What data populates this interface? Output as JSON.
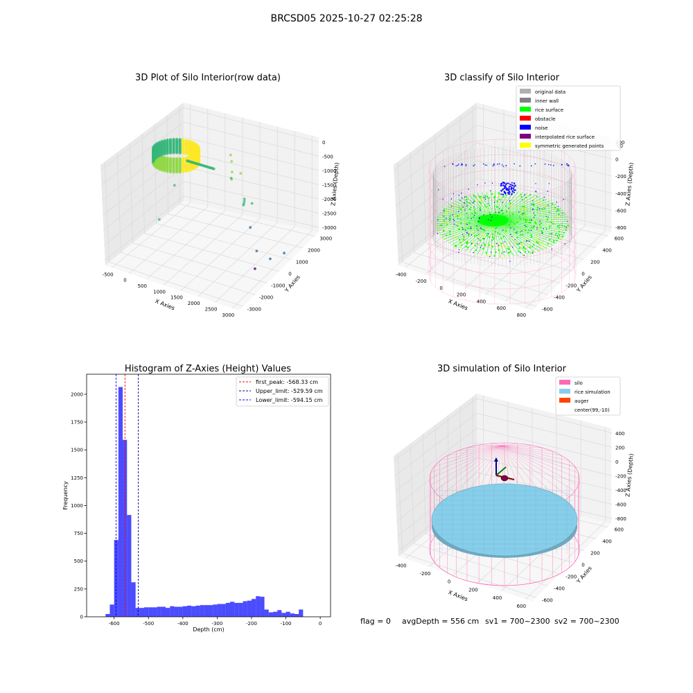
{
  "figure": {
    "suptitle": "BRCSD05 2025-10-27 02:25:28",
    "footer": {
      "flag": "flag = 0",
      "avg_depth": "avgDepth = 556 cm",
      "sv1": "sv1 = 700~2300",
      "sv2": "sv2 = 700~2300"
    }
  },
  "chart_data": [
    {
      "id": "raw3d",
      "type": "scatter",
      "title": "3D Plot of Silo Interior(row data)",
      "xlabel": "X Axies",
      "ylabel": "Y Axies",
      "zlabel": "Z Axies (Depth)",
      "x_ticks": [
        "-500",
        "0",
        "500",
        "1000",
        "1500",
        "2000",
        "2500",
        "3000"
      ],
      "y_ticks": [
        "-3000",
        "-2000",
        "-1000",
        "0",
        "1000",
        "2000",
        "3000"
      ],
      "z_ticks": [
        "0",
        "-500",
        "-1000",
        "-1500",
        "-2000",
        "-2500",
        "-3000"
      ],
      "xlim": [
        -600,
        3100
      ],
      "ylim": [
        -3100,
        3100
      ],
      "zlim": [
        -3100,
        100
      ],
      "colormap": [
        "#440154",
        "#31688e",
        "#35b779",
        "#90d743",
        "#fde725"
      ],
      "outlier_points": [
        {
          "x": 2900,
          "y": 800,
          "z": -2600
        },
        {
          "x": 2700,
          "y": 300,
          "z": -2700
        },
        {
          "x": 2400,
          "y": 100,
          "z": -2500
        },
        {
          "x": 2500,
          "y": -300,
          "z": -2900
        },
        {
          "x": 2000,
          "y": 700,
          "z": -2100
        },
        {
          "x": 1700,
          "y": 1000,
          "z": -1600
        },
        {
          "x": 1750,
          "y": 900,
          "z": -1500
        },
        {
          "x": 1780,
          "y": 850,
          "z": -1400
        },
        {
          "x": 1800,
          "y": 800,
          "z": -1300
        },
        {
          "x": 1900,
          "y": 1100,
          "z": -1500
        },
        {
          "x": 1300,
          "y": 1200,
          "z": -1000
        },
        {
          "x": 1200,
          "y": 1500,
          "z": -900
        },
        {
          "x": 1100,
          "y": 1700,
          "z": -1200
        },
        {
          "x": 1000,
          "y": 2000,
          "z": -800
        },
        {
          "x": 900,
          "y": 2200,
          "z": -700
        },
        {
          "x": 1400,
          "y": 1600,
          "z": -900
        },
        {
          "x": 200,
          "y": -100,
          "z": -1200
        },
        {
          "x": 300,
          "y": -1500,
          "z": -1800
        }
      ]
    },
    {
      "id": "classify3d",
      "type": "scatter",
      "title": "3D classify of Silo Interior",
      "xlabel": "X Axies",
      "ylabel": "Y Axies",
      "zlabel": "Z Axies (Depth)",
      "x_ticks": [
        "-400",
        "-200",
        "0",
        "200",
        "400",
        "600",
        "800"
      ],
      "y_ticks": [
        "-600",
        "-400",
        "-200",
        "0",
        "200",
        "400",
        "600"
      ],
      "z_ticks": [
        "200",
        "0",
        "-200",
        "-400",
        "-600",
        "-800"
      ],
      "z_tick_partial": "00",
      "legend": [
        {
          "label": "original data",
          "color": "#b0b0b0"
        },
        {
          "label": "inner wall",
          "color": "#808080"
        },
        {
          "label": "rice surface",
          "color": "#00ff00"
        },
        {
          "label": "obstacle",
          "color": "#ff0000"
        },
        {
          "label": "noise",
          "color": "#0000ff"
        },
        {
          "label": "interpolated rice surface",
          "color": "#800080"
        },
        {
          "label": "symmetric generated points",
          "color": "#ffff00"
        }
      ],
      "legend_loc": "upper right"
    },
    {
      "id": "histogram",
      "type": "bar",
      "title": "Histogram of Z-Axies (Height) Values",
      "xlabel": "Depth (cm)",
      "ylabel": "Frequency",
      "xlim": [
        -680,
        30
      ],
      "ylim": [
        0,
        2180
      ],
      "x_ticks": [
        -600,
        -500,
        -400,
        -300,
        -200,
        -100,
        0
      ],
      "y_ticks": [
        0,
        250,
        500,
        750,
        1000,
        1250,
        1500,
        1750,
        2000
      ],
      "bar_color": "#0000ff",
      "bin_width": 12.5,
      "bins": [
        {
          "x": -625,
          "value": 25
        },
        {
          "x": -612.5,
          "value": 110
        },
        {
          "x": -600,
          "value": 690
        },
        {
          "x": -587.5,
          "value": 2065
        },
        {
          "x": -575,
          "value": 1590
        },
        {
          "x": -562.5,
          "value": 915
        },
        {
          "x": -550,
          "value": 310
        },
        {
          "x": -537.5,
          "value": 80
        },
        {
          "x": -525,
          "value": 80
        },
        {
          "x": -512.5,
          "value": 85
        },
        {
          "x": -500,
          "value": 85
        },
        {
          "x": -487.5,
          "value": 85
        },
        {
          "x": -475,
          "value": 90
        },
        {
          "x": -462.5,
          "value": 90
        },
        {
          "x": -450,
          "value": 80
        },
        {
          "x": -437.5,
          "value": 95
        },
        {
          "x": -425,
          "value": 90
        },
        {
          "x": -412.5,
          "value": 90
        },
        {
          "x": -400,
          "value": 95
        },
        {
          "x": -387.5,
          "value": 100
        },
        {
          "x": -375,
          "value": 95
        },
        {
          "x": -362.5,
          "value": 100
        },
        {
          "x": -350,
          "value": 105
        },
        {
          "x": -337.5,
          "value": 105
        },
        {
          "x": -325,
          "value": 105
        },
        {
          "x": -312.5,
          "value": 110
        },
        {
          "x": -300,
          "value": 115
        },
        {
          "x": -287.5,
          "value": 115
        },
        {
          "x": -275,
          "value": 125
        },
        {
          "x": -262.5,
          "value": 135
        },
        {
          "x": -250,
          "value": 125
        },
        {
          "x": -237.5,
          "value": 125
        },
        {
          "x": -225,
          "value": 140
        },
        {
          "x": -212.5,
          "value": 145
        },
        {
          "x": -200,
          "value": 160
        },
        {
          "x": -187.5,
          "value": 185
        },
        {
          "x": -175,
          "value": 180
        },
        {
          "x": -162.5,
          "value": 65
        },
        {
          "x": -150,
          "value": 40
        },
        {
          "x": -137.5,
          "value": 45
        },
        {
          "x": -125,
          "value": 60
        },
        {
          "x": -112.5,
          "value": 35
        },
        {
          "x": -100,
          "value": 45
        },
        {
          "x": -87.5,
          "value": 30
        },
        {
          "x": -75,
          "value": 25
        },
        {
          "x": -62.5,
          "value": 65
        }
      ],
      "lines": [
        {
          "label": "first_peak: -568.33 cm",
          "x": -568.33,
          "color": "#ff0000"
        },
        {
          "label": "Upper_limit: -529.59 cm",
          "x": -529.59,
          "color": "#00008b"
        },
        {
          "label": "Lower_limit: -594.15 cm",
          "x": -594.15,
          "color": "#0000ff"
        }
      ],
      "legend_loc": "upper right"
    },
    {
      "id": "simulation3d",
      "type": "scatter",
      "title": "3D simulation of Silo Interior",
      "xlabel": "X Axies",
      "ylabel": "Y Axies",
      "zlabel": "Z Axies (Depth)",
      "x_ticks": [
        "-400",
        "-200",
        "0",
        "200",
        "400",
        "600"
      ],
      "y_ticks": [
        "-600",
        "-400",
        "-200",
        "0",
        "200",
        "400",
        "600"
      ],
      "z_ticks": [
        "400",
        "200",
        "0",
        "-200",
        "-400",
        "-600",
        "-800"
      ],
      "legend": [
        {
          "label": "silo",
          "color": "#ff69b4"
        },
        {
          "label": "rice simulation",
          "color": "#87ceeb"
        },
        {
          "label": "auger",
          "color": "#ff4500"
        },
        {
          "label": "center(99,-10)",
          "color": "none"
        }
      ],
      "legend_loc": "upper right"
    }
  ]
}
